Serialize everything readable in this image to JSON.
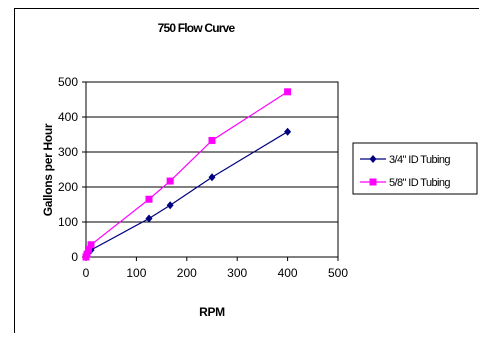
{
  "chart_data": {
    "type": "line",
    "title": "750 Flow Curve",
    "xlabel": "RPM",
    "ylabel": "Gallons per Hour",
    "xlim": [
      0,
      500
    ],
    "ylim": [
      0,
      500
    ],
    "xticks": [
      0,
      100,
      200,
      300,
      400,
      500
    ],
    "yticks": [
      0,
      100,
      200,
      300,
      400,
      500
    ],
    "grid": "horizontal",
    "legend_position": "right",
    "series": [
      {
        "name": "3/4\" ID Tubing",
        "color": "#000080",
        "marker": "diamond",
        "x": [
          0,
          2,
          5,
          10,
          125,
          167,
          250,
          400
        ],
        "y": [
          0,
          5,
          12,
          20,
          110,
          148,
          228,
          358
        ]
      },
      {
        "name": "5/8\" ID Tubing",
        "color": "#FF00FF",
        "marker": "square",
        "x": [
          0,
          2,
          5,
          10,
          125,
          167,
          250,
          400
        ],
        "y": [
          0,
          8,
          22,
          35,
          165,
          217,
          333,
          472
        ]
      }
    ]
  }
}
